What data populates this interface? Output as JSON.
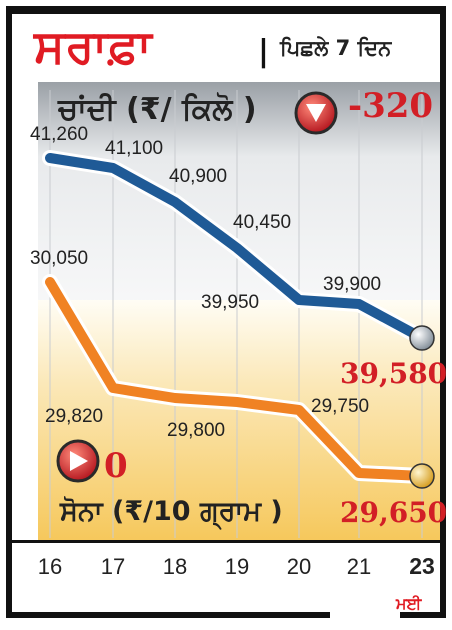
{
  "header": {
    "title": "ਸਰਾਫ਼ਾ",
    "divider": "|",
    "subtitle": "ਪਿਛਲੇ 7 ਦਿਨ"
  },
  "silver": {
    "label": "ਚਾਂਦੀ (₹/ ਕਿਲੋ )",
    "change": "-320",
    "end_value": "39,580",
    "arrow_icon": "down-arrow-icon"
  },
  "gold": {
    "label": "ਸੋਨਾ (₹/10 ਗ੍ਰਾਮ )",
    "change": "0",
    "end_value": "29,650",
    "arrow_icon": "right-arrow-icon"
  },
  "month_label": "ਮਈ",
  "colors": {
    "accent_red": "#e01b23",
    "silver_line": "#1f5a96",
    "gold_line": "#f08223"
  },
  "chart_data": {
    "type": "line",
    "x": [
      "16",
      "17",
      "18",
      "19",
      "20",
      "21",
      "23"
    ],
    "series": [
      {
        "name": "ਚਾਂਦੀ",
        "values": [
          41260,
          41100,
          40900,
          40450,
          39950,
          39900,
          39580
        ],
        "labels": [
          "41,260",
          "41,100",
          "40,900",
          "40,450",
          "39,950",
          "39,900",
          ""
        ]
      },
      {
        "name": "ਸੋਨਾ",
        "values": [
          30050,
          29820,
          29800,
          29800,
          29750,
          29650,
          29650
        ],
        "labels": [
          "30,050",
          "29,820",
          "29,800",
          "",
          "29,750",
          "",
          ""
        ]
      }
    ]
  }
}
